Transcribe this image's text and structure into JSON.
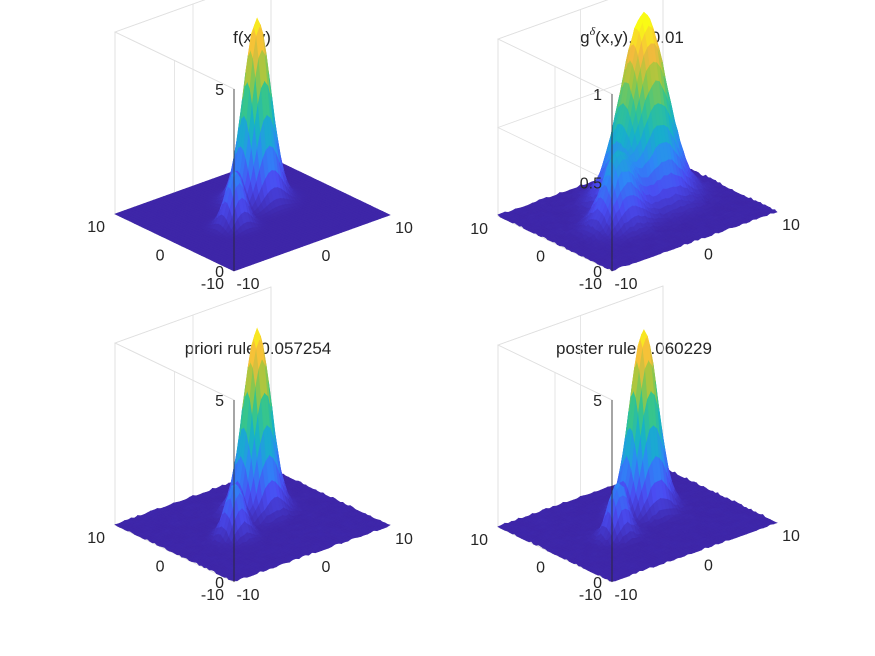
{
  "figure": {
    "background": "#ffffff",
    "colormap": "parula",
    "colormap_stops": [
      "#3e26a8",
      "#4a4cf2",
      "#2e87f7",
      "#17b1c9",
      "#37c58c",
      "#9fc83f",
      "#f6ba3d",
      "#f9fb15"
    ]
  },
  "chart_data": [
    {
      "type": "surface",
      "title": "f(x,y)",
      "x_ticks": [
        "-10",
        "0",
        "10"
      ],
      "y_ticks": [
        "-10",
        "0",
        "10"
      ],
      "z_ticks": [
        "0",
        "5"
      ],
      "xlim": [
        -10,
        10
      ],
      "ylim": [
        -10,
        10
      ],
      "zlim": [
        0,
        5
      ],
      "grid": true,
      "noise": false,
      "peaks": [
        {
          "x": 2.5,
          "y": 2.5,
          "height": 5.0,
          "width": 1.4
        },
        {
          "x": -3,
          "y": -1,
          "height": 1.5,
          "width": 1.0
        }
      ]
    },
    {
      "type": "surface",
      "title": "g(x,y),=0.01",
      "title_parts": {
        "g": "g",
        "superscript": "δ",
        "args": "(x,y),",
        "delta": "δ",
        "value": "=0.01"
      },
      "x_ticks": [
        "-10",
        "0",
        "10"
      ],
      "y_ticks": [
        "-10",
        "0",
        "10"
      ],
      "z_ticks": [
        "0",
        "0.5",
        "1"
      ],
      "xlim": [
        -10,
        10
      ],
      "ylim": [
        -10,
        10
      ],
      "zlim": [
        0,
        1
      ],
      "grid": true,
      "noise": true,
      "peaks": [
        {
          "x": 2.5,
          "y": 2.5,
          "height": 1.05,
          "width": 2.3
        },
        {
          "x": -3,
          "y": -1,
          "height": 0.4,
          "width": 1.6
        }
      ]
    },
    {
      "type": "surface",
      "title": "priori rule,0.057254",
      "x_ticks": [
        "-10",
        "0",
        "10"
      ],
      "y_ticks": [
        "-10",
        "0",
        "10"
      ],
      "z_ticks": [
        "0",
        "5"
      ],
      "xlim": [
        -10,
        10
      ],
      "ylim": [
        -10,
        10
      ],
      "zlim": [
        0,
        5
      ],
      "grid": true,
      "noise": true,
      "peaks": [
        {
          "x": 2.5,
          "y": 2.5,
          "height": 5.0,
          "width": 1.4
        },
        {
          "x": -3,
          "y": -1,
          "height": 1.5,
          "width": 1.0
        }
      ]
    },
    {
      "type": "surface",
      "title": "poster rule,0.060229",
      "x_ticks": [
        "-10",
        "0",
        "10"
      ],
      "y_ticks": [
        "-10",
        "0",
        "10"
      ],
      "z_ticks": [
        "0",
        "5"
      ],
      "xlim": [
        -10,
        10
      ],
      "ylim": [
        -10,
        10
      ],
      "zlim": [
        0,
        5
      ],
      "grid": true,
      "noise": true,
      "peaks": [
        {
          "x": 2.5,
          "y": 2.5,
          "height": 5.0,
          "width": 1.4
        },
        {
          "x": -3,
          "y": -1,
          "height": 1.5,
          "width": 1.0
        }
      ]
    }
  ]
}
